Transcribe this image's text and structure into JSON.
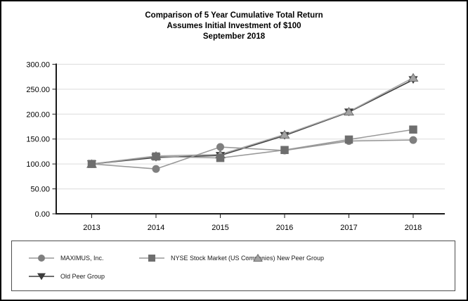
{
  "header": {
    "title_line1": "Comparison of 5 Year Cumulative Total Return",
    "title_line2": "Assumes Initial Investment of $100",
    "title_line3": "September 2018"
  },
  "chart_data": {
    "type": "line",
    "title": "Comparison of 5 Year Cumulative Total Return — Assumes Initial Investment of $100 — September 2018",
    "xlabel": "",
    "ylabel": "",
    "x_labels": [
      "2013",
      "2014",
      "2015",
      "2016",
      "2017",
      "2018"
    ],
    "y_ticks": [
      "0.00",
      "50.00",
      "100.00",
      "150.00",
      "200.00",
      "250.00",
      "300.00"
    ],
    "ylim": [
      0,
      300
    ],
    "y_tick_step": 50,
    "grid": true,
    "legend_position": "bottom-box",
    "colors": {
      "axis": "#1a1a1a",
      "gridline": "#dcdcdc",
      "legend_border": "#4d4d4d"
    },
    "series": [
      {
        "name": "MAXIMUS, Inc.",
        "marker": "circle",
        "marker_color": "#7f7f7f",
        "line_color": "#999999",
        "values": [
          100,
          90,
          134,
          127,
          146,
          148
        ]
      },
      {
        "name": "NYSE Stock Market (US Companies)",
        "marker": "square",
        "marker_color": "#6e6e6e",
        "line_color": "#999999",
        "values": [
          100,
          115,
          112,
          128,
          149,
          169
        ]
      },
      {
        "name": "New Peer Group",
        "marker": "triangle-up",
        "marker_color": "#a3a3a3",
        "marker_stroke": "#6e6e6e",
        "line_color": "#a6a6a6",
        "values": [
          100,
          116,
          119,
          159,
          205,
          273
        ]
      },
      {
        "name": "Old Peer Group",
        "marker": "triangle-down",
        "marker_color": "#3b3b3b",
        "line_color": "#3f3f3f",
        "values": [
          100,
          113,
          117,
          157,
          204,
          269
        ]
      }
    ]
  }
}
